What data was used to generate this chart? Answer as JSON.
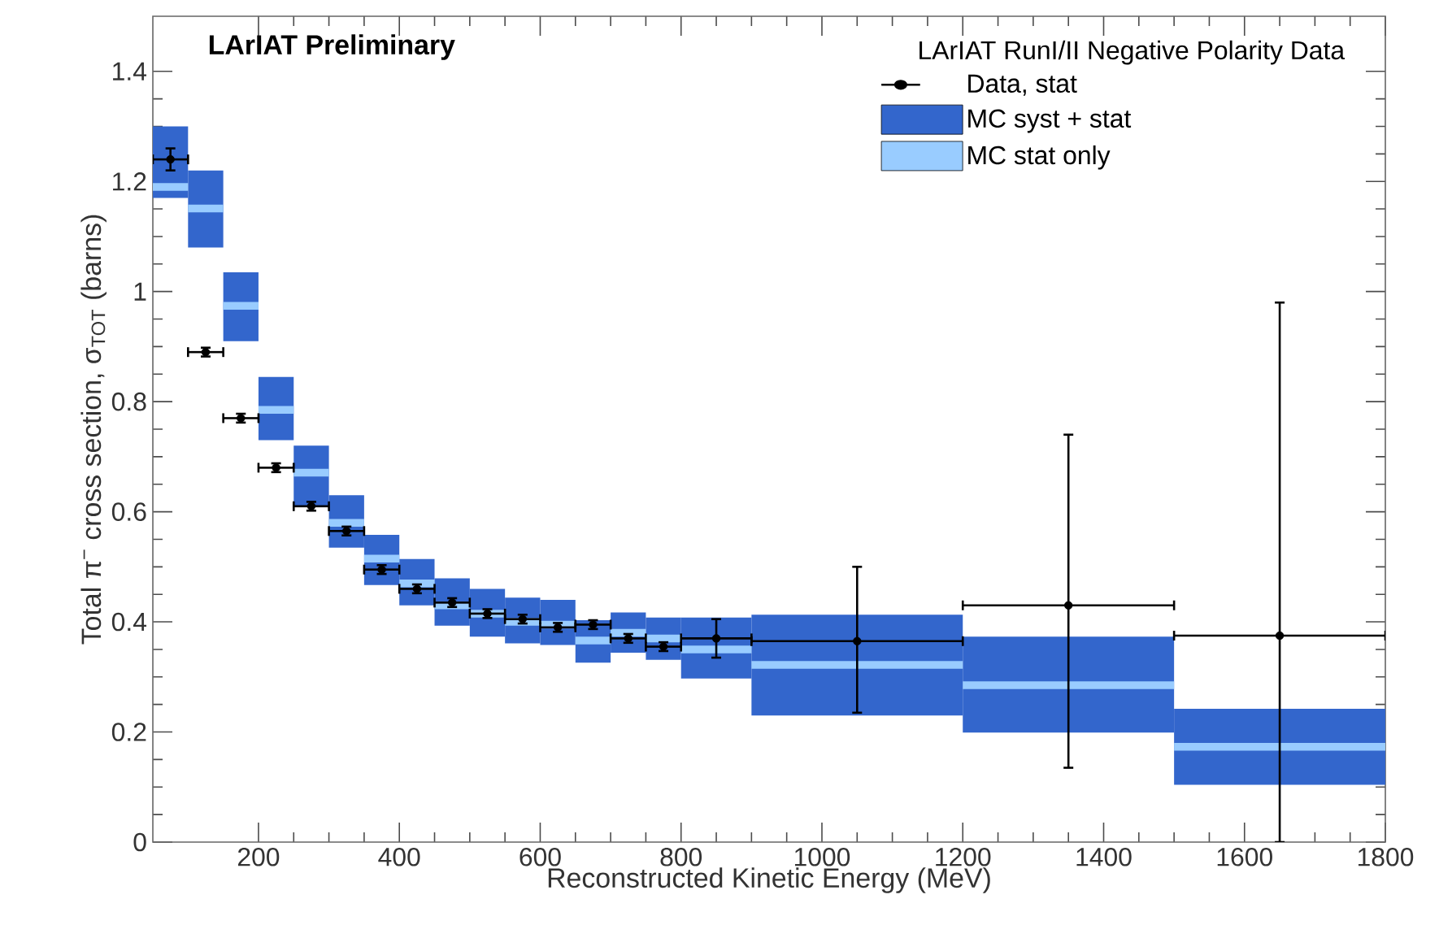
{
  "chart_data": {
    "type": "scatter",
    "title": "LArIAT Preliminary",
    "legend_title": "LArIAT RunI/II Negative Polarity Data",
    "xlabel": "Reconstructed Kinetic Energy (MeV)",
    "ylabel": "Total π$^{−}$ cross section, σ$_{TOT}$ (barns)",
    "xlim": [
      50,
      1800
    ],
    "ylim": [
      0,
      1.5
    ],
    "xticks": [
      200,
      400,
      600,
      800,
      1000,
      1200,
      1400,
      1600,
      1800
    ],
    "yticks": [
      0,
      0.2,
      0.4,
      0.6,
      0.8,
      1,
      1.2,
      1.4
    ],
    "grid": false,
    "legend": "top right",
    "series": [
      {
        "name": "Data, stat",
        "color": "#000000",
        "marker": "circle",
        "x": [
          75,
          125,
          175,
          225,
          275,
          325,
          375,
          425,
          475,
          525,
          575,
          625,
          675,
          725,
          775,
          850,
          1050,
          1350,
          1650
        ],
        "values": [
          1.24,
          0.89,
          0.77,
          0.68,
          0.61,
          0.565,
          0.495,
          0.46,
          0.435,
          0.415,
          0.405,
          0.39,
          0.395,
          0.37,
          0.355,
          0.37,
          0.365,
          0.43,
          0.375
        ],
        "errors": [
          0.02,
          0.008,
          0.008,
          0.008,
          0.008,
          0.008,
          0.008,
          0.008,
          0.008,
          0.008,
          0.008,
          0.008,
          0.008,
          0.008,
          0.008,
          0.035,
          [
            0.235,
            0.5
          ],
          [
            0.135,
            0.74
          ],
          [
            0,
            0.98
          ]
        ],
        "xerrors": [
          25,
          25,
          25,
          25,
          25,
          25,
          25,
          25,
          25,
          25,
          25,
          25,
          25,
          25,
          25,
          50,
          150,
          150,
          150
        ]
      },
      {
        "name": "MC syst + stat",
        "type": "bar",
        "color": "#3366cc",
        "x": [
          75,
          125,
          175,
          225,
          275,
          325,
          375,
          425,
          475,
          525,
          575,
          625,
          675,
          725,
          775,
          850,
          1050,
          1350,
          1650
        ],
        "base": [
          1.17,
          1.08,
          0.91,
          0.73,
          0.61,
          0.535,
          0.467,
          0.43,
          0.393,
          0.373,
          0.361,
          0.358,
          0.326,
          0.344,
          0.331,
          0.297,
          0.23,
          0.199,
          0.104
        ],
        "values": [
          0.13,
          0.14,
          0.125,
          0.115,
          0.11,
          0.095,
          0.091,
          0.084,
          0.086,
          0.087,
          0.083,
          0.082,
          0.077,
          0.073,
          0.077,
          0.111,
          0.183,
          0.174,
          0.138
        ]
      },
      {
        "name": "MC stat only",
        "type": "bar",
        "color": "#99ccff",
        "x": [
          75,
          125,
          175,
          225,
          275,
          325,
          375,
          425,
          475,
          525,
          575,
          625,
          675,
          725,
          775,
          850,
          1050,
          1350,
          1650
        ],
        "base": [
          1.183,
          1.144,
          0.967,
          0.778,
          0.664,
          0.573,
          0.508,
          0.463,
          0.423,
          0.408,
          0.393,
          0.388,
          0.359,
          0.373,
          0.363,
          0.343,
          0.315,
          0.278,
          0.166
        ],
        "values": [
          0.014,
          0.014,
          0.014,
          0.014,
          0.014,
          0.014,
          0.014,
          0.014,
          0.014,
          0.014,
          0.014,
          0.014,
          0.014,
          0.014,
          0.014,
          0.014,
          0.014,
          0.014,
          0.014
        ]
      }
    ]
  }
}
